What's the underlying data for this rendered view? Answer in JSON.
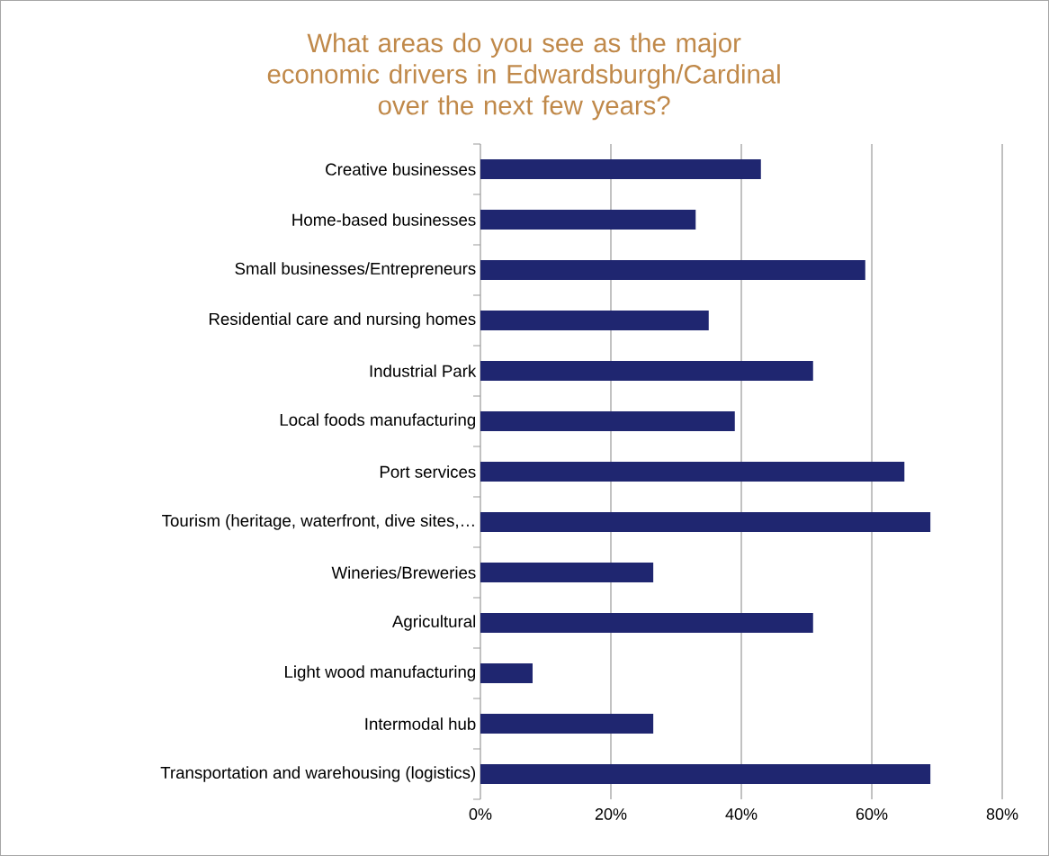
{
  "chart_data": {
    "type": "bar",
    "orientation": "horizontal",
    "title": "What areas do you see as the major economic drivers in Edwardsburgh/Cardinal over the next few years?",
    "categories": [
      "Creative businesses",
      "Home-based businesses",
      "Small businesses/Entrepreneurs",
      "Residential care and nursing homes",
      "Industrial Park",
      "Local foods manufacturing",
      "Port services",
      "Tourism (heritage, waterfront, dive sites,…",
      "Wineries/Breweries",
      "Agricultural",
      "Light wood manufacturing",
      "Intermodal hub",
      "Transportation and warehousing (logistics)"
    ],
    "values": [
      43,
      33,
      59,
      35,
      51,
      39,
      65,
      69,
      26.5,
      51,
      8,
      26.5,
      69
    ],
    "color": "#1f2670",
    "xlim": [
      0,
      80
    ],
    "xticks": [
      {
        "value": 0,
        "label": "0%"
      },
      {
        "value": 20,
        "label": "20%"
      },
      {
        "value": 40,
        "label": "40%"
      },
      {
        "value": 60,
        "label": "60%"
      },
      {
        "value": 80,
        "label": "80%"
      }
    ],
    "grid": "x"
  }
}
